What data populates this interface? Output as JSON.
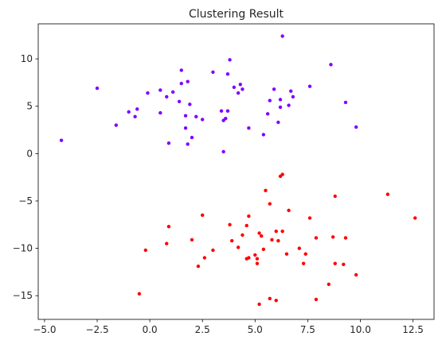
{
  "chart_data": {
    "type": "scatter",
    "title": "Clustering Result",
    "xlabel": "",
    "ylabel": "",
    "xlim": [
      -5.3,
      13.5
    ],
    "ylim": [
      -17.5,
      13.7
    ],
    "xticks": [
      -5.0,
      -2.5,
      0.0,
      2.5,
      5.0,
      7.5,
      10.0,
      12.5
    ],
    "xtick_labels": [
      "−5.0",
      "−2.5",
      "0.0",
      "2.5",
      "5.0",
      "7.5",
      "10.0",
      "12.5"
    ],
    "yticks": [
      -15,
      -10,
      -5,
      0,
      5,
      10
    ],
    "ytick_labels": [
      "−15",
      "−10",
      "−5",
      "0",
      "5",
      "10"
    ],
    "grid": false,
    "legend": "none",
    "series": [
      {
        "color": "#8000ff",
        "points": [
          [
            -4.2,
            1.4
          ],
          [
            -2.5,
            6.9
          ],
          [
            -1.6,
            3.0
          ],
          [
            -1.0,
            4.4
          ],
          [
            -0.7,
            3.9
          ],
          [
            -0.6,
            4.7
          ],
          [
            -0.1,
            6.4
          ],
          [
            0.5,
            6.7
          ],
          [
            0.5,
            4.3
          ],
          [
            0.8,
            6.0
          ],
          [
            0.9,
            1.1
          ],
          [
            1.1,
            6.5
          ],
          [
            1.4,
            5.5
          ],
          [
            1.5,
            7.4
          ],
          [
            1.5,
            8.8
          ],
          [
            1.7,
            2.7
          ],
          [
            1.7,
            4.0
          ],
          [
            1.8,
            7.6
          ],
          [
            1.8,
            1.0
          ],
          [
            1.9,
            5.2
          ],
          [
            2.0,
            1.7
          ],
          [
            2.2,
            3.9
          ],
          [
            2.5,
            3.6
          ],
          [
            3.0,
            8.6
          ],
          [
            3.4,
            4.5
          ],
          [
            3.5,
            3.5
          ],
          [
            3.5,
            0.2
          ],
          [
            3.6,
            3.7
          ],
          [
            3.7,
            8.4
          ],
          [
            3.7,
            4.5
          ],
          [
            3.8,
            9.9
          ],
          [
            4.0,
            7.0
          ],
          [
            4.2,
            6.4
          ],
          [
            4.3,
            7.3
          ],
          [
            4.4,
            6.8
          ],
          [
            4.7,
            2.7
          ],
          [
            5.4,
            2.0
          ],
          [
            5.6,
            4.2
          ],
          [
            5.7,
            5.6
          ],
          [
            5.9,
            6.8
          ],
          [
            6.1,
            3.3
          ],
          [
            6.2,
            5.7
          ],
          [
            6.2,
            4.9
          ],
          [
            6.3,
            12.4
          ],
          [
            6.6,
            5.1
          ],
          [
            6.7,
            6.6
          ],
          [
            6.8,
            6.0
          ],
          [
            7.6,
            7.1
          ],
          [
            8.6,
            9.4
          ],
          [
            9.3,
            5.4
          ],
          [
            9.8,
            2.8
          ]
        ]
      },
      {
        "color": "#ff0000",
        "points": [
          [
            -0.5,
            -14.8
          ],
          [
            -0.2,
            -10.2
          ],
          [
            0.8,
            -9.5
          ],
          [
            0.9,
            -7.7
          ],
          [
            2.0,
            -9.1
          ],
          [
            2.3,
            -11.9
          ],
          [
            2.5,
            -6.5
          ],
          [
            2.6,
            -11.0
          ],
          [
            3.0,
            -10.2
          ],
          [
            3.8,
            -7.5
          ],
          [
            3.9,
            -9.2
          ],
          [
            4.2,
            -9.9
          ],
          [
            4.4,
            -8.6
          ],
          [
            4.6,
            -7.6
          ],
          [
            4.6,
            -11.1
          ],
          [
            4.7,
            -11.0
          ],
          [
            4.7,
            -6.6
          ],
          [
            5.0,
            -10.7
          ],
          [
            5.1,
            -11.1
          ],
          [
            5.1,
            -11.6
          ],
          [
            5.2,
            -8.4
          ],
          [
            5.2,
            -15.9
          ],
          [
            5.3,
            -8.7
          ],
          [
            5.4,
            -10.1
          ],
          [
            5.5,
            -3.9
          ],
          [
            5.7,
            -5.3
          ],
          [
            5.7,
            -15.3
          ],
          [
            5.8,
            -9.1
          ],
          [
            6.0,
            -15.5
          ],
          [
            6.0,
            -8.2
          ],
          [
            6.1,
            -9.2
          ],
          [
            6.2,
            -2.4
          ],
          [
            6.3,
            -2.2
          ],
          [
            6.3,
            -8.2
          ],
          [
            6.5,
            -10.6
          ],
          [
            6.6,
            -6.0
          ],
          [
            7.1,
            -10.0
          ],
          [
            7.3,
            -11.6
          ],
          [
            7.4,
            -10.6
          ],
          [
            7.6,
            -6.8
          ],
          [
            7.9,
            -8.9
          ],
          [
            7.9,
            -15.4
          ],
          [
            8.5,
            -13.8
          ],
          [
            8.7,
            -8.8
          ],
          [
            8.8,
            -4.5
          ],
          [
            8.8,
            -11.6
          ],
          [
            9.2,
            -11.7
          ],
          [
            9.3,
            -8.9
          ],
          [
            9.8,
            -12.8
          ],
          [
            11.3,
            -4.3
          ],
          [
            12.6,
            -6.8
          ]
        ]
      }
    ]
  }
}
